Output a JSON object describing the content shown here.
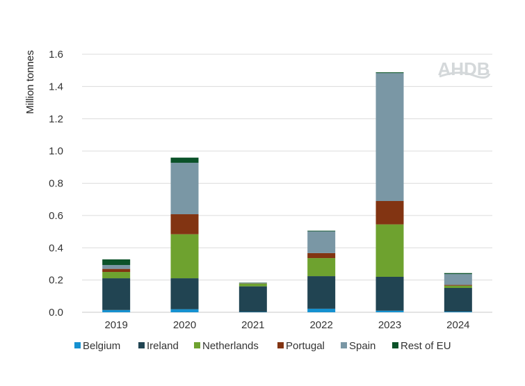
{
  "logo_text": "AHDB",
  "chart_data": {
    "type": "bar",
    "stacked": true,
    "title": "",
    "xlabel": "",
    "ylabel": "Million tonnes",
    "ylim": [
      0,
      1.6
    ],
    "yticks": [
      "0.0",
      "0.2",
      "0.4",
      "0.6",
      "0.8",
      "1.0",
      "1.2",
      "1.4",
      "1.6"
    ],
    "grid": true,
    "legend_position": "bottom",
    "categories": [
      "2019",
      "2020",
      "2021",
      "2022",
      "2023",
      "2024"
    ],
    "series": [
      {
        "name": "Belgium",
        "color": "#1591d0",
        "values": [
          0.014,
          0.019,
          0.002,
          0.022,
          0.01,
          0.004
        ]
      },
      {
        "name": "Ireland",
        "color": "#214452",
        "values": [
          0.197,
          0.192,
          0.159,
          0.202,
          0.21,
          0.147
        ]
      },
      {
        "name": "Netherlands",
        "color": "#6ea22f",
        "values": [
          0.039,
          0.273,
          0.017,
          0.112,
          0.325,
          0.014
        ]
      },
      {
        "name": "Portugal",
        "color": "#823412",
        "values": [
          0.019,
          0.124,
          0.001,
          0.031,
          0.145,
          0.005
        ]
      },
      {
        "name": "Spain",
        "color": "#7a97a5",
        "values": [
          0.024,
          0.319,
          0.003,
          0.135,
          0.793,
          0.067
        ]
      },
      {
        "name": "Rest of EU",
        "color": "#0b5229",
        "values": [
          0.035,
          0.032,
          0.002,
          0.004,
          0.005,
          0.006
        ]
      }
    ]
  }
}
